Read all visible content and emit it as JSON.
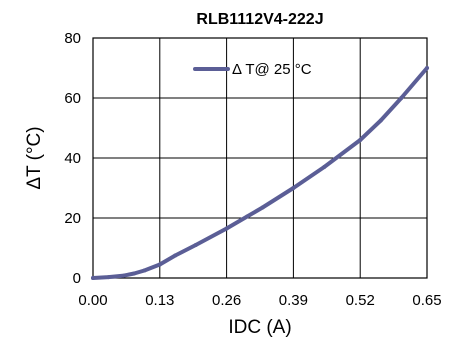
{
  "chart_data": {
    "type": "line",
    "title": "RLB1112V4-222J",
    "xlabel": "IDC (A)",
    "ylabel": "ΔT  (°C)",
    "xlim": [
      0,
      0.65
    ],
    "ylim": [
      0,
      80
    ],
    "x_ticks": [
      "0.00",
      "0.13",
      "0.26",
      "0.39",
      "0.52",
      "0.65"
    ],
    "y_ticks": [
      "0",
      "20",
      "40",
      "60",
      "80"
    ],
    "grid": true,
    "legend_position": "top-right",
    "series": [
      {
        "name": "Δ T@ 25 °C",
        "color": "#5b5e96",
        "x": [
          0.0,
          0.03,
          0.06,
          0.08,
          0.1,
          0.13,
          0.16,
          0.2,
          0.26,
          0.3,
          0.33,
          0.39,
          0.45,
          0.52,
          0.56,
          0.6,
          0.65
        ],
        "y": [
          0,
          0.3,
          0.8,
          1.5,
          2.5,
          4.5,
          7.5,
          11,
          16.5,
          20.5,
          23.5,
          30,
          37,
          46,
          52.5,
          60,
          70
        ]
      }
    ]
  }
}
